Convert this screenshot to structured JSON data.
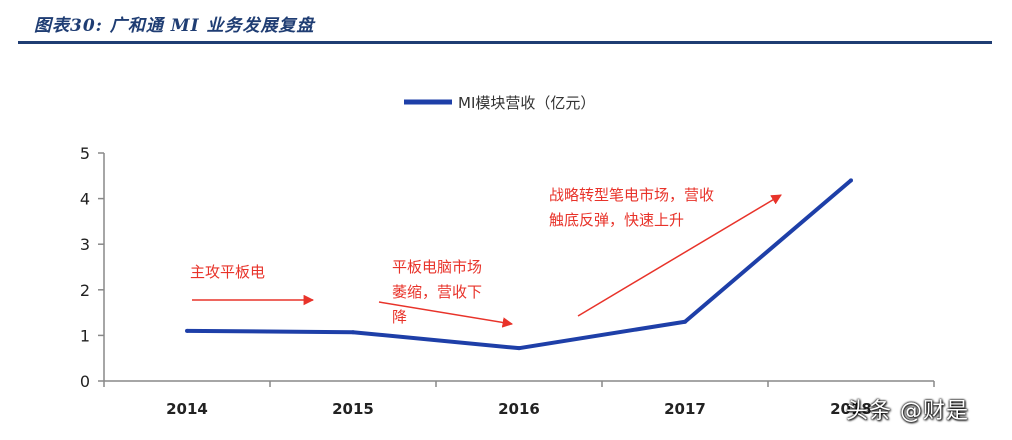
{
  "header": {
    "figure_title": "图表30: 广和通 MI 业务发展复盘"
  },
  "chart_data": {
    "type": "line",
    "categories": [
      "2014",
      "2015",
      "2016",
      "2017",
      "2018"
    ],
    "series": [
      {
        "name": "MI模块营收（亿元）",
        "values": [
          1.1,
          1.07,
          0.72,
          1.3,
          4.4
        ],
        "color": "#1e3fa8"
      }
    ],
    "ylim": [
      0,
      5
    ],
    "yticks": [
      "0",
      "1",
      "2",
      "3",
      "4",
      "5"
    ],
    "legend_position": "top",
    "annotations": [
      "主攻平板电",
      "平板电脑市场萎缩，营收下降",
      "战略转型笔电市场，营收触底反弹，快速上升"
    ],
    "annotation_color": "#e8332a"
  },
  "watermark": "头条 @财是"
}
